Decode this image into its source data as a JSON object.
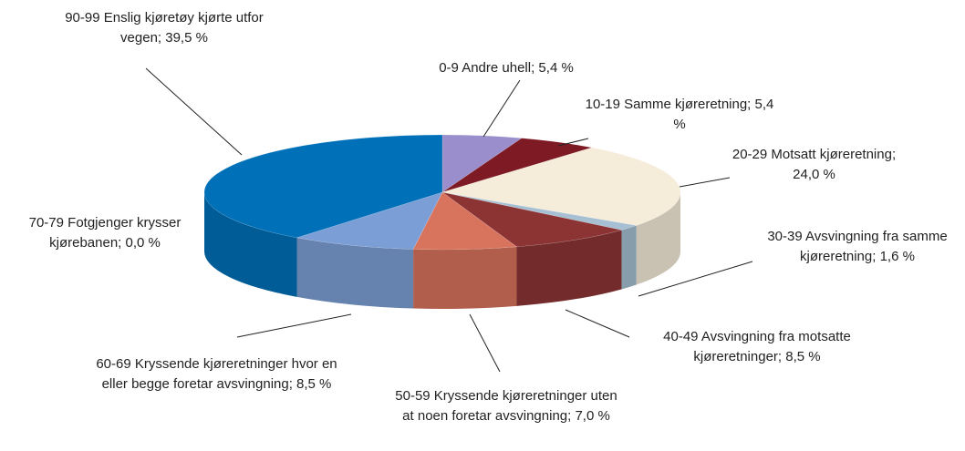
{
  "chart_data": {
    "type": "pie3d",
    "categories": [
      "0-9 Andre uhell; 5,4 %",
      "10-19 Samme kjøreretning; 5,4 %",
      "20-29 Motsatt kjøreretning; 24,0 %",
      "30-39 Avsvingning fra samme kjøreretning; 1,6 %",
      "40-49 Avsvingning fra motsatte kjøreretninger; 8,5 %",
      "50-59 Kryssende kjøreretninger uten at noen foretar avsvingning; 7,0 %",
      "60-69 Kryssende kjøreretninger hvor en eller begge foretar avsvingning; 8,5 %",
      "70-79 Fotgjenger krysser kjørebanen; 0,0 %",
      "90-99 Enslig kjøretøy kjørte utfor vegen; 39,5 %"
    ],
    "values": [
      5.4,
      5.4,
      24.0,
      1.6,
      8.5,
      7.0,
      8.5,
      0.0,
      39.5
    ],
    "colors": [
      "#9a8fcc",
      "#7e1a24",
      "#f5ecda",
      "#a6bfd2",
      "#8c3434",
      "#d8735e",
      "#7c9ed6",
      "#6aa0d0",
      "#0070b8"
    ]
  }
}
